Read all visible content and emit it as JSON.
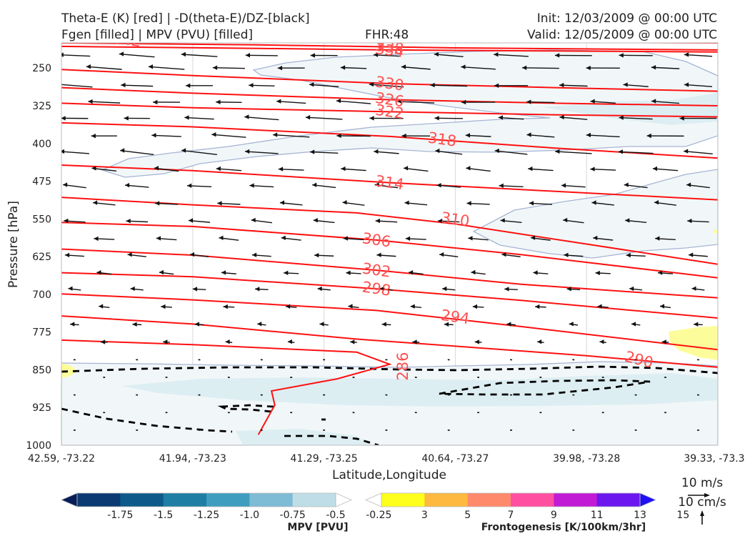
{
  "header": {
    "title_left_1": "Theta-E (K) [red] | -D(theta-E)/DZ-[black]",
    "title_left_2": "Fgen [filled] | MPV (PVU) [filled]",
    "fhr": "FHR:48",
    "init": "Init: 12/03/2009 @ 00:00 UTC",
    "valid": "Valid: 12/05/2009 @ 00:00 UTC"
  },
  "chart_data": {
    "type": "cross-section",
    "xlabel": "Latitude,Longitude",
    "ylabel": "Pressure [hPa]",
    "x_tick_labels": [
      "42.59, -73.22",
      "41.94, -73.23",
      "41.29, -73.25",
      "40.64, -73.27",
      "39.98, -73.28",
      "39.33, -73.3"
    ],
    "y_ticks": [
      250,
      325,
      400,
      475,
      550,
      625,
      700,
      775,
      850,
      925,
      1000
    ],
    "ylim": [
      1000,
      200
    ],
    "theta_e_contours": [
      {
        "value": 342,
        "label": "342",
        "points": [
          [
            0,
            193
          ],
          [
            0.3,
            195
          ],
          [
            0.6,
            198
          ],
          [
            1,
            200
          ]
        ]
      },
      {
        "value": 338,
        "label": "338",
        "points": [
          [
            0,
            200
          ],
          [
            0.3,
            204
          ],
          [
            0.6,
            210
          ],
          [
            1,
            214
          ]
        ]
      },
      {
        "value": 334,
        "label": "334",
        "points": [
          [
            0,
            207
          ],
          [
            0.3,
            211
          ],
          [
            0.5,
            214
          ],
          [
            0.75,
            216
          ],
          [
            1,
            218
          ]
        ]
      },
      {
        "value": 330,
        "label": "330",
        "points": [
          [
            0,
            253
          ],
          [
            0.2,
            265
          ],
          [
            0.5,
            281
          ],
          [
            0.75,
            289
          ],
          [
            1,
            296
          ]
        ]
      },
      {
        "value": 326,
        "label": "326",
        "points": [
          [
            0,
            289
          ],
          [
            0.2,
            300
          ],
          [
            0.5,
            313
          ],
          [
            0.75,
            320
          ],
          [
            1,
            325
          ]
        ]
      },
      {
        "value": 322,
        "label": "322",
        "points": [
          [
            0,
            320
          ],
          [
            0.2,
            329
          ],
          [
            0.5,
            337
          ],
          [
            0.75,
            343
          ],
          [
            1,
            347
          ]
        ]
      },
      {
        "value": 318,
        "label": "318",
        "points": [
          [
            0,
            359
          ],
          [
            0.2,
            367
          ],
          [
            0.5,
            386
          ],
          [
            0.75,
            409
          ],
          [
            1,
            429
          ]
        ]
      },
      {
        "value": 314,
        "label": "314",
        "points": [
          [
            0,
            443
          ],
          [
            0.2,
            454
          ],
          [
            0.5,
            478
          ],
          [
            0.75,
            495
          ],
          [
            1,
            512
          ]
        ]
      },
      {
        "value": 310,
        "label": "310",
        "points": [
          [
            0,
            507
          ],
          [
            0.2,
            522
          ],
          [
            0.45,
            538
          ],
          [
            0.6,
            560
          ],
          [
            0.8,
            600
          ],
          [
            1,
            640
          ]
        ]
      },
      {
        "value": 306,
        "label": "306",
        "points": [
          [
            0,
            557
          ],
          [
            0.2,
            565
          ],
          [
            0.48,
            592
          ],
          [
            0.7,
            621
          ],
          [
            1,
            667
          ]
        ]
      },
      {
        "value": 302,
        "label": "302",
        "points": [
          [
            0,
            610
          ],
          [
            0.2,
            622
          ],
          [
            0.48,
            652
          ],
          [
            0.7,
            680
          ],
          [
            1,
            707
          ]
        ]
      },
      {
        "value": 298,
        "label": "298",
        "points": [
          [
            0,
            657
          ],
          [
            0.2,
            665
          ],
          [
            0.48,
            689
          ],
          [
            0.7,
            712
          ],
          [
            1,
            747
          ]
        ]
      },
      {
        "value": 294,
        "label": "294",
        "points": [
          [
            0,
            699
          ],
          [
            0.2,
            711
          ],
          [
            0.48,
            732
          ],
          [
            0.7,
            764
          ],
          [
            1,
            810
          ]
        ]
      },
      {
        "value": 290,
        "label": "290",
        "points": [
          [
            0,
            743
          ],
          [
            0.2,
            759
          ],
          [
            0.45,
            789
          ],
          [
            0.6,
            803
          ],
          [
            0.8,
            822
          ],
          [
            1,
            845
          ]
        ]
      },
      {
        "value": 286,
        "label": "286",
        "points": [
          [
            0,
            791
          ],
          [
            0.2,
            800
          ],
          [
            0.45,
            815
          ],
          [
            0.5,
            839
          ],
          [
            0.42,
            868
          ],
          [
            0.32,
            892
          ],
          [
            0.325,
            920
          ],
          [
            0.3,
            979
          ]
        ]
      }
    ],
    "mpv_fill_levels": [
      -1.75,
      -1.5,
      -1.25,
      -1.0,
      -0.75,
      -0.5,
      -0.25
    ],
    "fgen_fill_levels": [
      3,
      5,
      7,
      9,
      11,
      13,
      15
    ],
    "wind_reference": {
      "horizontal": "10 m/s",
      "vertical": "10 cm/s"
    }
  },
  "colorbars": {
    "mpv": {
      "label": "MPV [PVU]",
      "tick_labels": [
        "-1.75",
        "-1.5",
        "-1.25",
        "-1.0",
        "-0.75",
        "-0.5",
        "-0.25"
      ],
      "colors": [
        "#081d58",
        "#0b3a72",
        "#0d5a8a",
        "#1f7ea3",
        "#3f9dbf",
        "#7dbcd4",
        "#bfdde6",
        "#ffffff"
      ]
    },
    "fgen": {
      "label": "Frontogenesis [K/100km/3hr]",
      "tick_labels": [
        "3",
        "5",
        "7",
        "9",
        "11",
        "13",
        "15"
      ],
      "colors": [
        "#ffffff",
        "#ffff1e",
        "#fdb940",
        "#ff8a6b",
        "#ff4fa0",
        "#c11bd6",
        "#6b17ee",
        "#1f10f5"
      ]
    }
  },
  "colors": {
    "theta_e": "#ff1010",
    "theta_e_label": "#ff5050",
    "mpv_fill_light": "#f1f7f8",
    "mpv_fill_mid": "#ddeef3",
    "mpv_outline": "#a6b4d4",
    "fgen_fill": "#fdfc9a",
    "wind_arrow": "#111111",
    "dashed": "#000000"
  }
}
